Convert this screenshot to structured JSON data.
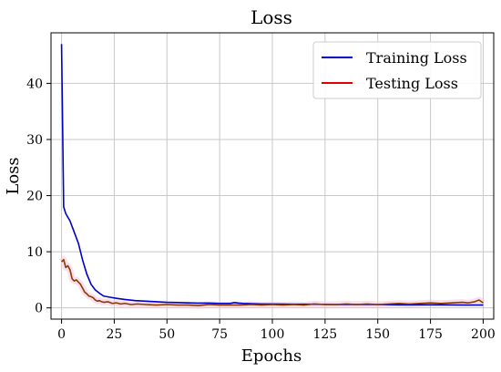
{
  "chart_data": {
    "type": "line",
    "title": "Loss",
    "xlabel": "Epochs",
    "ylabel": "Loss",
    "xlim": [
      -5,
      205
    ],
    "ylim": [
      -2,
      49
    ],
    "xticks": [
      0,
      25,
      50,
      75,
      100,
      125,
      150,
      175,
      200
    ],
    "yticks": [
      0,
      10,
      20,
      30,
      40
    ],
    "grid": true,
    "legend_position": "top-right",
    "series": [
      {
        "name": "Training Loss",
        "color": "#0000cc",
        "x": [
          0,
          1,
          2,
          4,
          6,
          8,
          10,
          12,
          14,
          16,
          18,
          20,
          23,
          26,
          30,
          35,
          40,
          45,
          50,
          55,
          60,
          65,
          70,
          75,
          80,
          82,
          84,
          86,
          90,
          95,
          100,
          110,
          120,
          130,
          140,
          150,
          160,
          170,
          180,
          190,
          195,
          198,
          200
        ],
        "y": [
          47,
          18,
          16.8,
          15.5,
          13.5,
          11.5,
          8.5,
          6.0,
          4.2,
          3.2,
          2.6,
          2.1,
          1.9,
          1.7,
          1.5,
          1.3,
          1.2,
          1.1,
          1.0,
          0.95,
          0.9,
          0.85,
          0.85,
          0.8,
          0.8,
          0.95,
          0.85,
          0.8,
          0.75,
          0.7,
          0.7,
          0.65,
          0.65,
          0.6,
          0.6,
          0.6,
          0.55,
          0.55,
          0.55,
          0.5,
          0.5,
          0.5,
          0.5
        ]
      },
      {
        "name": "Testing Loss",
        "color": "#e00000",
        "x": [
          0,
          1,
          2,
          3,
          4,
          5,
          6,
          7,
          8,
          9,
          10,
          11,
          12,
          13,
          14,
          15,
          16,
          17,
          18,
          19,
          20,
          22,
          24,
          26,
          28,
          30,
          33,
          36,
          40,
          45,
          50,
          55,
          60,
          65,
          70,
          75,
          80,
          85,
          90,
          95,
          100,
          105,
          110,
          115,
          120,
          125,
          130,
          135,
          140,
          145,
          150,
          155,
          160,
          165,
          170,
          175,
          180,
          185,
          190,
          193,
          196,
          198,
          200
        ],
        "y": [
          8.2,
          8.6,
          7.2,
          7.5,
          6.8,
          5.2,
          4.8,
          5.0,
          4.6,
          4.2,
          3.5,
          2.8,
          2.5,
          2.1,
          2.0,
          1.8,
          1.4,
          1.2,
          1.3,
          1.1,
          1.0,
          1.1,
          0.8,
          0.9,
          0.7,
          0.8,
          0.6,
          0.7,
          0.6,
          0.5,
          0.6,
          0.5,
          0.5,
          0.4,
          0.6,
          0.5,
          0.5,
          0.5,
          0.6,
          0.5,
          0.6,
          0.5,
          0.6,
          0.5,
          0.7,
          0.6,
          0.6,
          0.7,
          0.6,
          0.7,
          0.6,
          0.7,
          0.8,
          0.7,
          0.8,
          0.9,
          0.8,
          0.9,
          1.0,
          0.9,
          1.1,
          1.4,
          0.9
        ]
      }
    ]
  }
}
